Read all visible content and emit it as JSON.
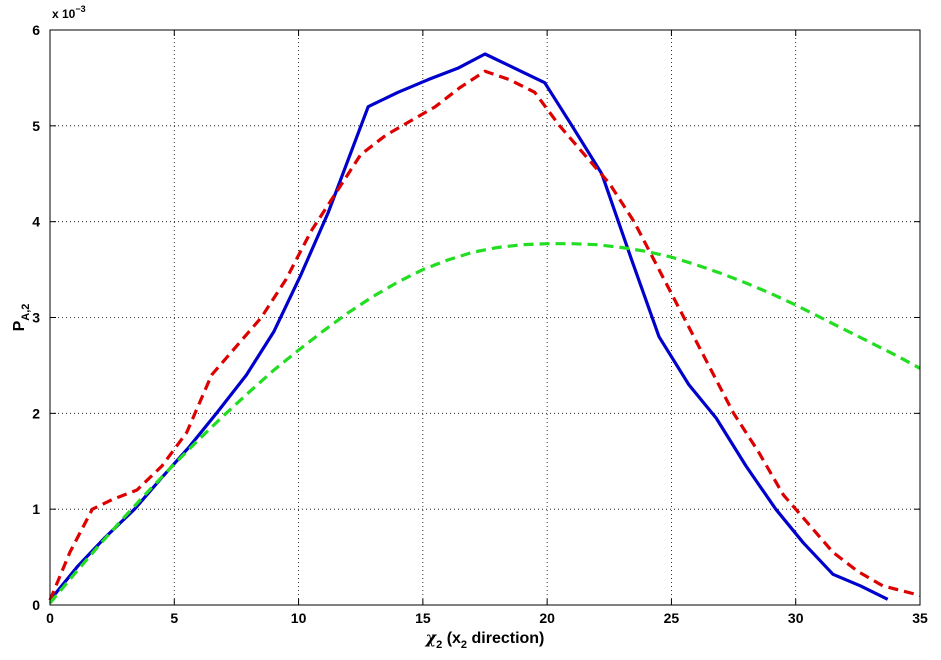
{
  "chart_data": {
    "type": "line",
    "title": "",
    "xlabel": {
      "symbol": "χ",
      "sub": "2",
      "rest": " (x",
      "sub2": "2",
      "tail": " direction)"
    },
    "ylabel": {
      "main": "P",
      "sub": "A,2"
    },
    "exponent": {
      "base": "x 10",
      "power": "−3"
    },
    "xlim": [
      0,
      35
    ],
    "ylim": [
      0,
      6
    ],
    "xticks": [
      0,
      5,
      10,
      15,
      20,
      25,
      30,
      35
    ],
    "yticks": [
      0,
      1,
      2,
      3,
      4,
      5,
      6
    ],
    "grid": true,
    "series": [
      {
        "color": "#0000cc",
        "style": "solid",
        "x": [
          0,
          1.1,
          2.2,
          3.4,
          4.5,
          5.6,
          6.7,
          7.9,
          9.0,
          10.1,
          11.2,
          12.8,
          14.0,
          15.2,
          16.4,
          17.5,
          18.7,
          19.9,
          21.0,
          22.2,
          23.4,
          24.5,
          25.7,
          26.8,
          28.0,
          29.2,
          30.3,
          31.5,
          32.6,
          33.7
        ],
        "y": [
          0.05,
          0.4,
          0.7,
          1.0,
          1.33,
          1.65,
          2.0,
          2.4,
          2.85,
          3.45,
          4.1,
          5.2,
          5.35,
          5.48,
          5.6,
          5.75,
          5.6,
          5.45,
          5.0,
          4.5,
          3.6,
          2.8,
          2.3,
          1.95,
          1.45,
          1.0,
          0.65,
          0.32,
          0.2,
          0.06
        ]
      },
      {
        "color": "#dd0000",
        "style": "dashed",
        "x": [
          0,
          0.8,
          1.7,
          2.5,
          3.5,
          4.5,
          5.5,
          6.5,
          7.5,
          8.5,
          9.5,
          10.5,
          11.5,
          12.5,
          13.5,
          14.5,
          15.5,
          16.5,
          17.5,
          18.5,
          19.5,
          20.5,
          21.5,
          22.5,
          23.5,
          24.5,
          25.5,
          26.5,
          27.5,
          28.5,
          29.5,
          30.5,
          31.5,
          32.5,
          33.5,
          35
        ],
        "y": [
          0.05,
          0.55,
          1.0,
          1.1,
          1.2,
          1.45,
          1.8,
          2.4,
          2.7,
          3.0,
          3.4,
          3.9,
          4.3,
          4.7,
          4.9,
          5.05,
          5.2,
          5.4,
          5.57,
          5.48,
          5.35,
          5.0,
          4.7,
          4.4,
          4.0,
          3.5,
          3.0,
          2.5,
          2.0,
          1.6,
          1.15,
          0.85,
          0.55,
          0.35,
          0.2,
          0.1
        ]
      },
      {
        "color": "#22dd22",
        "style": "dashed",
        "x": [
          0,
          1,
          2,
          3,
          4,
          5,
          6,
          7,
          8,
          9,
          10,
          11,
          12,
          13,
          14,
          15,
          16,
          17,
          18,
          19,
          20,
          21,
          22,
          23,
          24,
          25,
          26,
          27,
          28,
          29,
          30,
          31,
          32,
          33,
          34,
          35
        ],
        "y": [
          0.02,
          0.33,
          0.63,
          0.92,
          1.2,
          1.47,
          1.73,
          1.98,
          2.22,
          2.45,
          2.66,
          2.86,
          3.05,
          3.22,
          3.37,
          3.5,
          3.6,
          3.68,
          3.73,
          3.76,
          3.77,
          3.77,
          3.76,
          3.73,
          3.69,
          3.63,
          3.55,
          3.46,
          3.36,
          3.25,
          3.13,
          3.0,
          2.87,
          2.74,
          2.61,
          2.47
        ]
      }
    ]
  }
}
